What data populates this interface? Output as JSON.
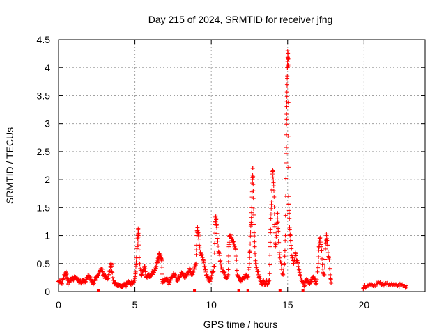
{
  "chart_data": {
    "type": "scatter",
    "title": "Day 215 of 2024, SRMTID for receiver jfng",
    "xlabel": "GPS time / hours",
    "ylabel": "SRMTID / TECUs",
    "xlim": [
      0,
      24
    ],
    "ylim": [
      0,
      4.5
    ],
    "grid": true,
    "marker": "+",
    "color": "#ff0000",
    "xticks": [
      {
        "value": 0,
        "label": "0"
      },
      {
        "value": 5,
        "label": "5"
      },
      {
        "value": 10,
        "label": "10"
      },
      {
        "value": 15,
        "label": "15"
      },
      {
        "value": 20,
        "label": "20"
      }
    ],
    "yticks": [
      {
        "value": 0,
        "label": "0"
      },
      {
        "value": 0.5,
        "label": "0.5"
      },
      {
        "value": 1,
        "label": "1"
      },
      {
        "value": 1.5,
        "label": "1.5"
      },
      {
        "value": 2,
        "label": "2"
      },
      {
        "value": 2.5,
        "label": "2.5"
      },
      {
        "value": 3,
        "label": "3"
      },
      {
        "value": 3.5,
        "label": "3.5"
      },
      {
        "value": 4,
        "label": "4"
      },
      {
        "value": 4.5,
        "label": "4.5"
      }
    ],
    "series": [
      {
        "name": "SRMTID",
        "points": [
          [
            0.0,
            0.18
          ],
          [
            0.1,
            0.2
          ],
          [
            0.2,
            0.15
          ],
          [
            0.3,
            0.22
          ],
          [
            0.4,
            0.3
          ],
          [
            0.5,
            0.35
          ],
          [
            0.55,
            0.25
          ],
          [
            0.6,
            0.15
          ],
          [
            0.7,
            0.18
          ],
          [
            0.8,
            0.2
          ],
          [
            0.9,
            0.25
          ],
          [
            1.0,
            0.22
          ],
          [
            1.1,
            0.26
          ],
          [
            1.2,
            0.24
          ],
          [
            1.3,
            0.2
          ],
          [
            1.4,
            0.18
          ],
          [
            1.5,
            0.16
          ],
          [
            1.6,
            0.2
          ],
          [
            1.7,
            0.18
          ],
          [
            1.8,
            0.22
          ],
          [
            1.9,
            0.25
          ],
          [
            2.0,
            0.28
          ],
          [
            2.1,
            0.22
          ],
          [
            2.2,
            0.18
          ],
          [
            2.3,
            0.15
          ],
          [
            2.4,
            0.2
          ],
          [
            2.5,
            0.25
          ],
          [
            2.6,
            0.3
          ],
          [
            2.7,
            0.38
          ],
          [
            2.8,
            0.4
          ],
          [
            2.9,
            0.35
          ],
          [
            3.0,
            0.28
          ],
          [
            3.1,
            0.25
          ],
          [
            3.2,
            0.22
          ],
          [
            3.3,
            0.3
          ],
          [
            3.4,
            0.45
          ],
          [
            3.45,
            0.5
          ],
          [
            3.5,
            0.35
          ],
          [
            3.6,
            0.2
          ],
          [
            3.7,
            0.15
          ],
          [
            3.8,
            0.12
          ],
          [
            3.9,
            0.14
          ],
          [
            4.0,
            0.12
          ],
          [
            4.1,
            0.1
          ],
          [
            4.2,
            0.12
          ],
          [
            4.3,
            0.14
          ],
          [
            4.4,
            0.12
          ],
          [
            4.5,
            0.15
          ],
          [
            4.6,
            0.16
          ],
          [
            4.7,
            0.14
          ],
          [
            4.8,
            0.16
          ],
          [
            4.9,
            0.18
          ],
          [
            5.0,
            0.2
          ],
          [
            5.05,
            0.35
          ],
          [
            5.1,
            0.6
          ],
          [
            5.15,
            0.8
          ],
          [
            5.2,
            1.0
          ],
          [
            5.22,
            1.1
          ],
          [
            5.25,
            0.9
          ],
          [
            5.3,
            0.5
          ],
          [
            5.4,
            0.3
          ],
          [
            5.5,
            0.35
          ],
          [
            5.6,
            0.4
          ],
          [
            5.65,
            0.45
          ],
          [
            5.7,
            0.3
          ],
          [
            5.8,
            0.25
          ],
          [
            5.9,
            0.3
          ],
          [
            6.0,
            0.28
          ],
          [
            6.1,
            0.32
          ],
          [
            6.2,
            0.35
          ],
          [
            6.3,
            0.38
          ],
          [
            6.4,
            0.45
          ],
          [
            6.5,
            0.55
          ],
          [
            6.55,
            0.6
          ],
          [
            6.6,
            0.68
          ],
          [
            6.7,
            0.65
          ],
          [
            6.75,
            0.55
          ],
          [
            6.8,
            0.15
          ],
          [
            6.9,
            0.2
          ],
          [
            7.0,
            0.22
          ],
          [
            7.1,
            0.25
          ],
          [
            7.2,
            0.15
          ],
          [
            7.3,
            0.2
          ],
          [
            7.4,
            0.25
          ],
          [
            7.5,
            0.3
          ],
          [
            7.6,
            0.28
          ],
          [
            7.7,
            0.25
          ],
          [
            7.8,
            0.2
          ],
          [
            7.9,
            0.25
          ],
          [
            8.0,
            0.3
          ],
          [
            8.1,
            0.32
          ],
          [
            8.2,
            0.28
          ],
          [
            8.3,
            0.25
          ],
          [
            8.4,
            0.3
          ],
          [
            8.5,
            0.35
          ],
          [
            8.6,
            0.4
          ],
          [
            8.7,
            0.3
          ],
          [
            8.8,
            0.35
          ],
          [
            8.9,
            0.4
          ],
          [
            9.0,
            0.5
          ],
          [
            9.05,
            1.0
          ],
          [
            9.1,
            1.15
          ],
          [
            9.15,
            1.05
          ],
          [
            9.2,
            0.85
          ],
          [
            9.3,
            0.7
          ],
          [
            9.4,
            0.65
          ],
          [
            9.5,
            0.55
          ],
          [
            9.6,
            0.4
          ],
          [
            9.7,
            0.3
          ],
          [
            9.8,
            0.25
          ],
          [
            9.9,
            0.2
          ],
          [
            10.0,
            0.25
          ],
          [
            10.1,
            0.35
          ],
          [
            10.2,
            0.45
          ],
          [
            10.25,
            1.2
          ],
          [
            10.3,
            1.35
          ],
          [
            10.35,
            1.2
          ],
          [
            10.4,
            0.9
          ],
          [
            10.5,
            0.7
          ],
          [
            10.6,
            0.55
          ],
          [
            10.7,
            0.4
          ],
          [
            10.8,
            0.35
          ],
          [
            10.9,
            0.3
          ],
          [
            11.0,
            0.25
          ],
          [
            11.1,
            0.3
          ],
          [
            11.15,
            0.8
          ],
          [
            11.2,
            1.0
          ],
          [
            11.3,
            0.95
          ],
          [
            11.4,
            0.9
          ],
          [
            11.5,
            0.85
          ],
          [
            11.6,
            0.75
          ],
          [
            11.7,
            0.3
          ],
          [
            11.8,
            0.25
          ],
          [
            11.9,
            0.2
          ],
          [
            12.0,
            0.22
          ],
          [
            12.1,
            0.25
          ],
          [
            12.2,
            0.28
          ],
          [
            12.3,
            0.3
          ],
          [
            12.4,
            0.25
          ],
          [
            12.5,
            0.5
          ],
          [
            12.55,
            0.85
          ],
          [
            12.6,
            1.2
          ],
          [
            12.65,
            1.5
          ],
          [
            12.7,
            2.0
          ],
          [
            12.72,
            2.2
          ],
          [
            12.75,
            1.8
          ],
          [
            12.8,
            1.2
          ],
          [
            12.85,
            0.8
          ],
          [
            12.9,
            0.5
          ],
          [
            13.0,
            0.4
          ],
          [
            13.1,
            0.3
          ],
          [
            13.2,
            0.2
          ],
          [
            13.3,
            0.15
          ],
          [
            13.4,
            0.18
          ],
          [
            13.5,
            0.15
          ],
          [
            13.6,
            0.18
          ],
          [
            13.7,
            0.15
          ],
          [
            13.8,
            0.2
          ],
          [
            13.85,
            0.8
          ],
          [
            13.9,
            1.3
          ],
          [
            13.95,
            1.6
          ],
          [
            14.0,
            2.1
          ],
          [
            14.05,
            2.15
          ],
          [
            14.1,
            1.8
          ],
          [
            14.15,
            1.2
          ],
          [
            14.2,
            0.8
          ],
          [
            14.3,
            1.1
          ],
          [
            14.35,
            1.4
          ],
          [
            14.4,
            0.9
          ],
          [
            14.5,
            0.6
          ],
          [
            14.6,
            0.4
          ],
          [
            14.7,
            0.3
          ],
          [
            14.8,
            0.5
          ],
          [
            14.85,
            1.0
          ],
          [
            14.9,
            2.3
          ],
          [
            14.92,
            2.8
          ],
          [
            14.94,
            3.3
          ],
          [
            14.96,
            3.7
          ],
          [
            14.98,
            4.0
          ],
          [
            15.0,
            4.3
          ],
          [
            15.02,
            4.25
          ],
          [
            15.04,
            4.05
          ],
          [
            15.06,
            1.7
          ],
          [
            15.1,
            1.4
          ],
          [
            15.15,
            1.0
          ],
          [
            15.2,
            0.9
          ],
          [
            15.3,
            0.6
          ],
          [
            15.4,
            0.5
          ],
          [
            15.5,
            0.7
          ],
          [
            15.6,
            0.55
          ],
          [
            15.7,
            0.45
          ],
          [
            15.8,
            0.3
          ],
          [
            15.9,
            0.2
          ],
          [
            16.0,
            0.15
          ],
          [
            16.1,
            0.12
          ],
          [
            16.2,
            0.18
          ],
          [
            16.3,
            0.2
          ],
          [
            16.4,
            0.15
          ],
          [
            16.5,
            0.18
          ],
          [
            16.6,
            0.22
          ],
          [
            16.7,
            0.25
          ],
          [
            16.8,
            0.18
          ],
          [
            16.9,
            0.15
          ],
          [
            17.0,
            0.5
          ],
          [
            17.05,
            0.8
          ],
          [
            17.1,
            0.95
          ],
          [
            17.2,
            0.8
          ],
          [
            17.3,
            0.4
          ],
          [
            17.4,
            0.3
          ],
          [
            17.5,
            0.9
          ],
          [
            17.55,
            1.0
          ],
          [
            17.6,
            0.85
          ],
          [
            17.7,
            0.6
          ],
          [
            17.8,
            0.3
          ],
          [
            17.85,
            0.15
          ],
          [
            19.95,
            0.05
          ],
          [
            20.0,
            0.08
          ],
          [
            20.2,
            0.1
          ],
          [
            20.4,
            0.12
          ],
          [
            20.6,
            0.1
          ],
          [
            20.8,
            0.12
          ],
          [
            21.0,
            0.15
          ],
          [
            21.2,
            0.13
          ],
          [
            21.4,
            0.15
          ],
          [
            21.6,
            0.12
          ],
          [
            21.8,
            0.14
          ],
          [
            22.0,
            0.12
          ],
          [
            22.2,
            0.1
          ],
          [
            22.4,
            0.12
          ],
          [
            22.6,
            0.1
          ],
          [
            22.8,
            0.08
          ]
        ]
      }
    ],
    "zero_gaps": [
      2.6,
      8.9,
      11.8,
      12.4,
      14.5,
      16.0
    ]
  }
}
